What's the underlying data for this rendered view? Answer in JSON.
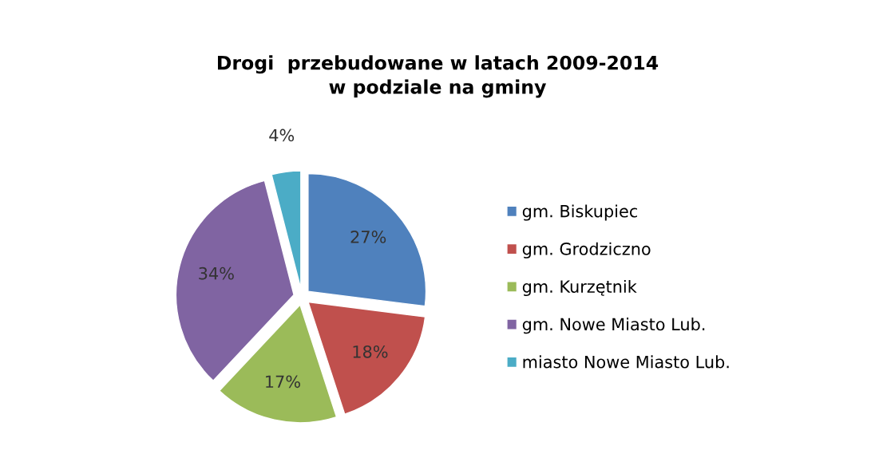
{
  "chart_data": {
    "type": "pie",
    "title": "Drogi  przebudowane w latach 2009-2014\nw podziale na gminy",
    "categories": [
      "gm. Biskupiec",
      "gm. Grodziczno",
      "gm. Kurzętnik",
      "gm. Nowe Miasto Lub.",
      "miasto Nowe Miasto Lub."
    ],
    "values": [
      27,
      18,
      17,
      34,
      4
    ],
    "colors": [
      "#4f81bd",
      "#c0504d",
      "#9bbb59",
      "#8064a2",
      "#4bacc6"
    ],
    "value_labels": [
      "27%",
      "18%",
      "17%",
      "34%",
      "4%"
    ],
    "legend": "right"
  }
}
